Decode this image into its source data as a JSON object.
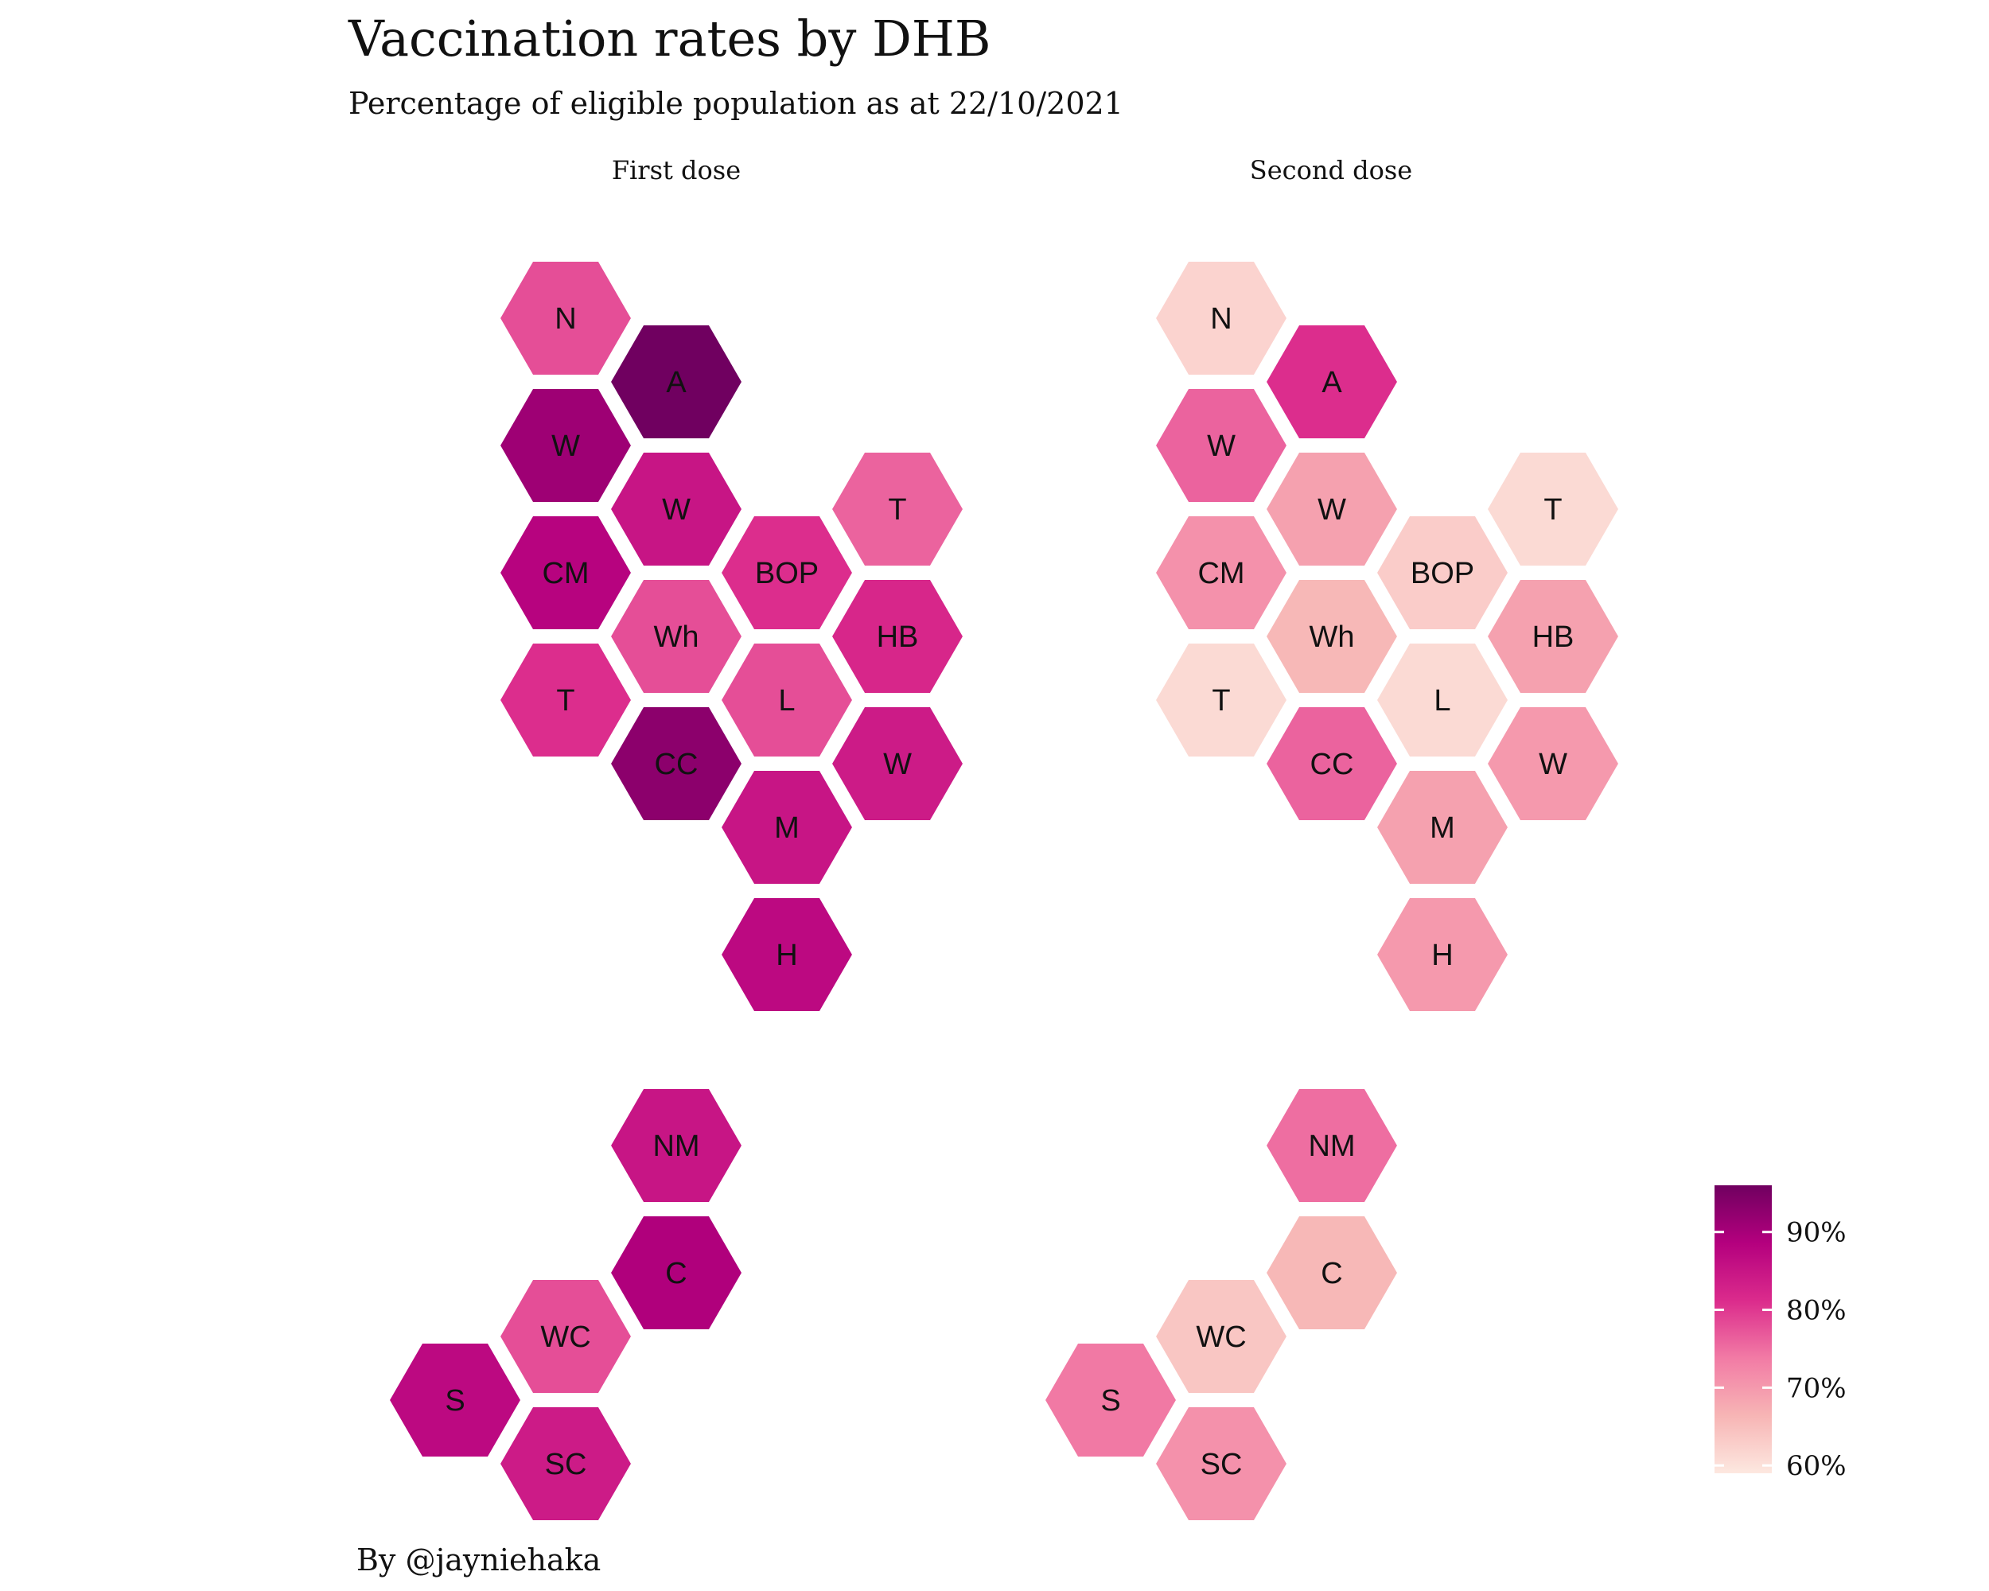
{
  "title": "Vaccination rates by DHB",
  "subtitle": "Percentage of eligible population as at 22/10/2021",
  "caption": "By @jayniehaka",
  "chart_data": {
    "type": "hexmap",
    "facets": [
      {
        "name": "First dose",
        "hexes": [
          {
            "label": "N",
            "col": 0,
            "row": 0,
            "value": 78
          },
          {
            "label": "W",
            "col": 0,
            "row": 1,
            "value": 91
          },
          {
            "label": "A",
            "col": 1,
            "row": 1,
            "value": 96
          },
          {
            "label": "CM",
            "col": 0,
            "row": 2,
            "value": 88
          },
          {
            "label": "BOP",
            "col": 2,
            "row": 2,
            "value": 81
          },
          {
            "label": "W",
            "col": 1,
            "row": 2,
            "value": 85
          },
          {
            "label": "T",
            "col": 3,
            "row": 2,
            "value": 76
          },
          {
            "label": "T",
            "col": 0,
            "row": 3,
            "value": 81
          },
          {
            "label": "L",
            "col": 2,
            "row": 3,
            "value": 78
          },
          {
            "label": "Wh",
            "col": 1,
            "row": 3,
            "value": 78
          },
          {
            "label": "HB",
            "col": 3,
            "row": 3,
            "value": 82
          },
          {
            "label": "M",
            "col": 2,
            "row": 4,
            "value": 85
          },
          {
            "label": "CC",
            "col": 1,
            "row": 4,
            "value": 93
          },
          {
            "label": "W",
            "col": 3,
            "row": 4,
            "value": 84
          },
          {
            "label": "H",
            "col": 2,
            "row": 5,
            "value": 87
          },
          {
            "label": "NM",
            "col": 1,
            "row": 7,
            "value": 85
          },
          {
            "label": "WC",
            "col": 0,
            "row": 8,
            "value": 78
          },
          {
            "label": "C",
            "col": 1,
            "row": 8,
            "value": 89
          },
          {
            "label": "SC",
            "col": 0,
            "row": 9,
            "value": 84
          },
          {
            "label": "S",
            "col": -1,
            "row": 9,
            "value": 87
          }
        ]
      },
      {
        "name": "Second dose",
        "hexes": [
          {
            "label": "N",
            "col": 0,
            "row": 0,
            "value": 62
          },
          {
            "label": "W",
            "col": 0,
            "row": 1,
            "value": 76
          },
          {
            "label": "A",
            "col": 1,
            "row": 1,
            "value": 81
          },
          {
            "label": "CM",
            "col": 0,
            "row": 2,
            "value": 71
          },
          {
            "label": "BOP",
            "col": 2,
            "row": 2,
            "value": 63
          },
          {
            "label": "W",
            "col": 1,
            "row": 2,
            "value": 69
          },
          {
            "label": "T",
            "col": 3,
            "row": 2,
            "value": 61
          },
          {
            "label": "T",
            "col": 0,
            "row": 3,
            "value": 61
          },
          {
            "label": "L",
            "col": 2,
            "row": 3,
            "value": 61
          },
          {
            "label": "Wh",
            "col": 1,
            "row": 3,
            "value": 66
          },
          {
            "label": "HB",
            "col": 3,
            "row": 3,
            "value": 69
          },
          {
            "label": "M",
            "col": 2,
            "row": 4,
            "value": 69
          },
          {
            "label": "CC",
            "col": 1,
            "row": 4,
            "value": 76
          },
          {
            "label": "W",
            "col": 3,
            "row": 4,
            "value": 70
          },
          {
            "label": "H",
            "col": 2,
            "row": 5,
            "value": 70
          },
          {
            "label": "NM",
            "col": 1,
            "row": 7,
            "value": 75
          },
          {
            "label": "WC",
            "col": 0,
            "row": 8,
            "value": 64
          },
          {
            "label": "C",
            "col": 1,
            "row": 8,
            "value": 66
          },
          {
            "label": "SC",
            "col": 0,
            "row": 9,
            "value": 71
          },
          {
            "label": "S",
            "col": -1,
            "row": 9,
            "value": 74
          }
        ]
      }
    ],
    "legend": {
      "ticks": [
        "90%",
        "80%",
        "70%",
        "60%"
      ],
      "tick_values": [
        90,
        80,
        70,
        60
      ],
      "range": [
        59,
        96
      ],
      "placement": "bottom-right",
      "colors": [
        "#fde8e0",
        "#f7b5b5",
        "#f27ba5",
        "#db2b8c",
        "#b4007e",
        "#700060"
      ]
    }
  }
}
